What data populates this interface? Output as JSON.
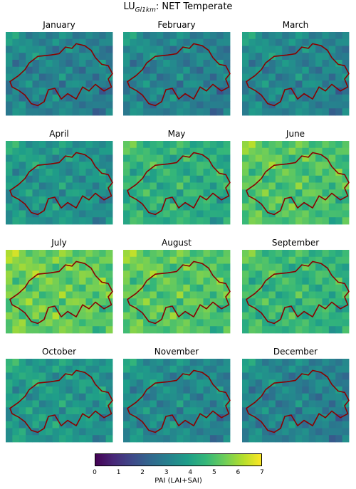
{
  "title_main": "LU",
  "title_sub": "Gl1km",
  "title_rest": ": NET Temperate",
  "chart_data": {
    "type": "heatmap",
    "title": "LU_Gl1km: NET Temperate",
    "colormap": "viridis",
    "vmin": 0,
    "vmax": 7,
    "colorbar_label": "PAI (LAI+SAI)",
    "colorbar_ticks": [
      "0",
      "1",
      "2",
      "3",
      "4",
      "5",
      "6",
      "7"
    ],
    "outline_color": "#8b0000",
    "panels": [
      {
        "month": "January",
        "mean_pai": 3.1
      },
      {
        "month": "February",
        "mean_pai": 3.1
      },
      {
        "month": "March",
        "mean_pai": 3.2
      },
      {
        "month": "April",
        "mean_pai": 3.6
      },
      {
        "month": "May",
        "mean_pai": 4.4
      },
      {
        "month": "June",
        "mean_pai": 5.0
      },
      {
        "month": "July",
        "mean_pai": 5.3
      },
      {
        "month": "August",
        "mean_pai": 5.1
      },
      {
        "month": "September",
        "mean_pai": 4.6
      },
      {
        "month": "October",
        "mean_pai": 3.7
      },
      {
        "month": "November",
        "mean_pai": 3.3
      },
      {
        "month": "December",
        "mean_pai": 3.1
      }
    ]
  }
}
